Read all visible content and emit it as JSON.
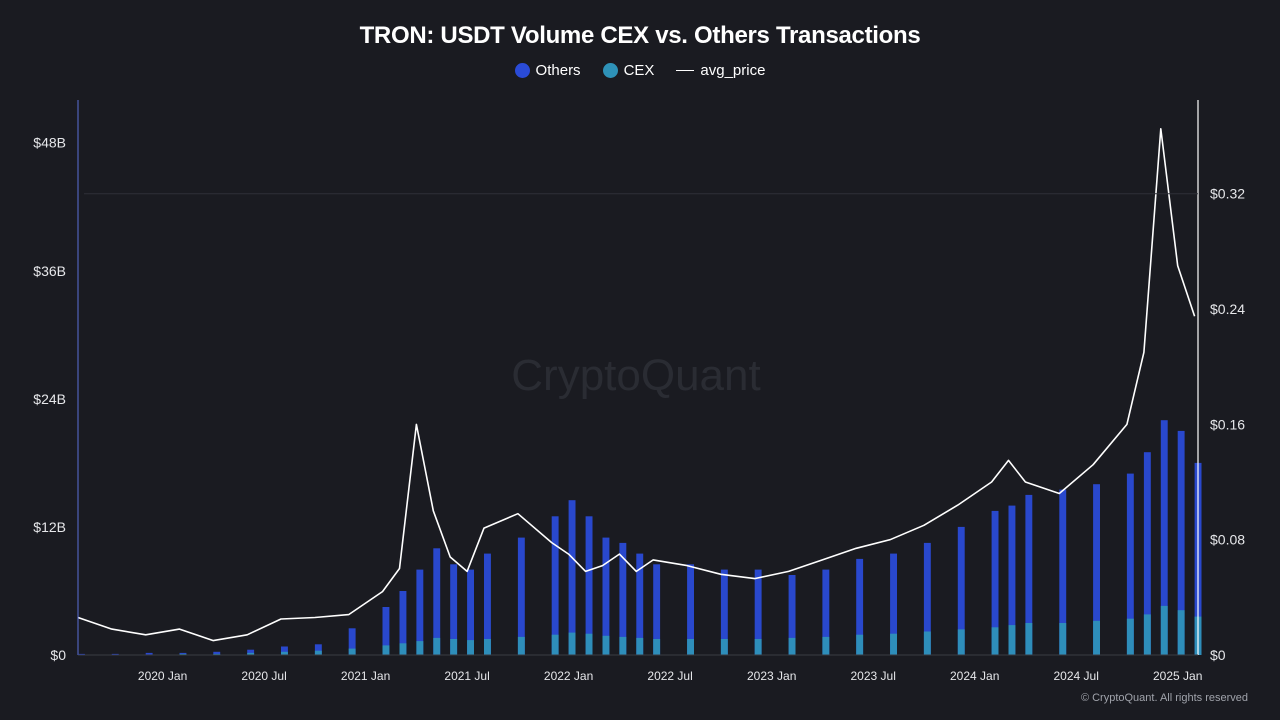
{
  "chart_data": {
    "type": "bar",
    "title": "TRON: USDT Volume CEX vs. Others Transactions",
    "legend_placement": "top",
    "grid": false,
    "watermark": "CryptoQuant",
    "copyright": "© CryptoQuant. All rights reserved",
    "x_axis": {
      "ticks": [
        "2020 Jan",
        "2020 Jul",
        "2021 Jan",
        "2021 Jul",
        "2022 Jan",
        "2022 Jul",
        "2023 Jan",
        "2023 Jul",
        "2024 Jan",
        "2024 Jul",
        "2025 Jan"
      ],
      "range": [
        "2019-08",
        "2025-02"
      ]
    },
    "y_axis_left": {
      "ticks": [
        "$0",
        "$12B",
        "$24B",
        "$36B",
        "$48B"
      ],
      "range": [
        0,
        52
      ],
      "unit": "USD billions"
    },
    "y_axis_right": {
      "ticks": [
        "$0",
        "$0.08",
        "$0.16",
        "$0.24",
        "$0.32"
      ],
      "range": [
        0,
        0.385
      ],
      "unit": "USD"
    },
    "x": [
      "2019-08",
      "2019-10",
      "2019-12",
      "2020-02",
      "2020-04",
      "2020-06",
      "2020-08",
      "2020-10",
      "2020-12",
      "2021-02",
      "2021-03",
      "2021-04",
      "2021-05",
      "2021-06",
      "2021-07",
      "2021-08",
      "2021-10",
      "2021-12",
      "2022-01",
      "2022-02",
      "2022-03",
      "2022-04",
      "2022-05",
      "2022-06",
      "2022-08",
      "2022-10",
      "2022-12",
      "2023-02",
      "2023-04",
      "2023-06",
      "2023-08",
      "2023-10",
      "2023-12",
      "2024-02",
      "2024-03",
      "2024-04",
      "2024-06",
      "2024-08",
      "2024-10",
      "2024-11",
      "2024-12",
      "2025-01",
      "2025-02"
    ],
    "series": [
      {
        "name": "Others",
        "color": "#2a4bd7",
        "values": [
          0.1,
          0.1,
          0.2,
          0.2,
          0.3,
          0.5,
          0.8,
          1.0,
          2.5,
          4.5,
          6.0,
          8.0,
          10.0,
          8.5,
          8.0,
          9.5,
          11.0,
          13.0,
          14.5,
          13.0,
          11.0,
          10.5,
          9.5,
          8.5,
          8.5,
          8.0,
          8.0,
          7.5,
          8.0,
          9.0,
          9.5,
          10.5,
          12.0,
          13.5,
          14.0,
          15.0,
          15.5,
          16.0,
          17.0,
          19.0,
          22.0,
          21.0,
          18.0
        ]
      },
      {
        "name": "CEX",
        "color": "#2e92b8",
        "values": [
          0.05,
          0.05,
          0.05,
          0.1,
          0.1,
          0.2,
          0.3,
          0.4,
          0.6,
          0.9,
          1.1,
          1.3,
          1.6,
          1.5,
          1.4,
          1.5,
          1.7,
          1.9,
          2.1,
          2.0,
          1.8,
          1.7,
          1.6,
          1.5,
          1.5,
          1.5,
          1.5,
          1.6,
          1.7,
          1.9,
          2.0,
          2.2,
          2.4,
          2.6,
          2.8,
          3.0,
          3.0,
          3.2,
          3.4,
          3.8,
          4.6,
          4.2,
          3.6
        ]
      },
      {
        "name": "avg_price",
        "color": "#ffffff",
        "axis": "right",
        "values": [
          0.026,
          0.018,
          0.014,
          0.018,
          0.01,
          0.014,
          0.025,
          0.026,
          0.028,
          0.044,
          0.06,
          0.16,
          0.1,
          0.068,
          0.058,
          0.088,
          0.098,
          0.078,
          0.07,
          0.058,
          0.062,
          0.07,
          0.058,
          0.066,
          0.062,
          0.056,
          0.053,
          0.058,
          0.066,
          0.074,
          0.08,
          0.09,
          0.104,
          0.12,
          0.135,
          0.12,
          0.112,
          0.132,
          0.16,
          0.21,
          0.365,
          0.27,
          0.235
        ]
      }
    ]
  }
}
